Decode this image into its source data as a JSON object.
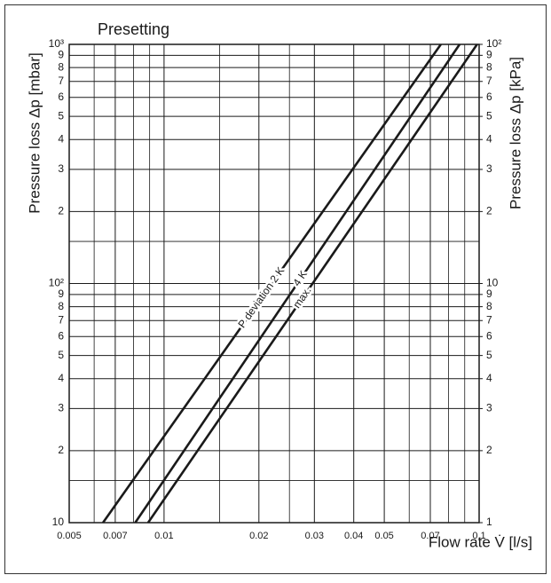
{
  "chart_data": {
    "type": "line",
    "title": "Presetting",
    "xlabel": "Flow rate V̇ [l/s]",
    "ylabel": "Pressure loss Δp [mbar]",
    "y2label": "Pressure loss Δp [kPa]",
    "log_x": true,
    "log_y": true,
    "grid": true,
    "xlim": [
      0.005,
      0.1
    ],
    "ylim": [
      10,
      1000
    ],
    "y2lim": [
      1,
      100
    ],
    "xticks": [
      0.005,
      0.007,
      0.01,
      0.02,
      0.03,
      0.04,
      0.05,
      0.07,
      0.1
    ],
    "xminor": [
      0.006,
      0.008,
      0.009,
      0.015,
      0.025,
      0.06,
      0.08,
      0.09
    ],
    "yticks": [
      10,
      {
        "value": 20,
        "label": "2"
      },
      {
        "value": 30,
        "label": "3"
      },
      {
        "value": 40,
        "label": "4"
      },
      {
        "value": 50,
        "label": "5"
      },
      {
        "value": 60,
        "label": "6"
      },
      {
        "value": 70,
        "label": "7"
      },
      {
        "value": 80,
        "label": "8"
      },
      {
        "value": 90,
        "label": "9"
      },
      {
        "value": 100,
        "label": "10²"
      },
      {
        "value": 200,
        "label": "2"
      },
      {
        "value": 300,
        "label": "3"
      },
      {
        "value": 400,
        "label": "4"
      },
      {
        "value": 500,
        "label": "5"
      },
      {
        "value": 600,
        "label": "6"
      },
      {
        "value": 700,
        "label": "7"
      },
      {
        "value": 800,
        "label": "8"
      },
      {
        "value": 900,
        "label": "9"
      },
      {
        "value": 1000,
        "label": "10³"
      }
    ],
    "yminor": [
      15,
      150
    ],
    "y2ticks": [
      1,
      2,
      3,
      4,
      5,
      6,
      7,
      8,
      9,
      10,
      {
        "value": 20,
        "label": "2"
      },
      {
        "value": 30,
        "label": "3"
      },
      {
        "value": 40,
        "label": "4"
      },
      {
        "value": 50,
        "label": "5"
      },
      {
        "value": 60,
        "label": "6"
      },
      {
        "value": 70,
        "label": "7"
      },
      {
        "value": 80,
        "label": "8"
      },
      {
        "value": 90,
        "label": "9"
      },
      {
        "value": 100,
        "label": "10²"
      }
    ],
    "series": [
      {
        "name": "P deviation 2 K",
        "color": "#1a1a1a",
        "x": [
          0.0064,
          0.0756
        ],
        "values": [
          10,
          1000
        ]
      },
      {
        "name": "4 K",
        "color": "#1a1a1a",
        "x": [
          0.0081,
          0.0867
        ],
        "values": [
          10,
          1000
        ]
      },
      {
        "name": "max.",
        "color": "#1a1a1a",
        "x": [
          0.0089,
          0.0985
        ],
        "values": [
          10,
          1000
        ]
      }
    ]
  }
}
